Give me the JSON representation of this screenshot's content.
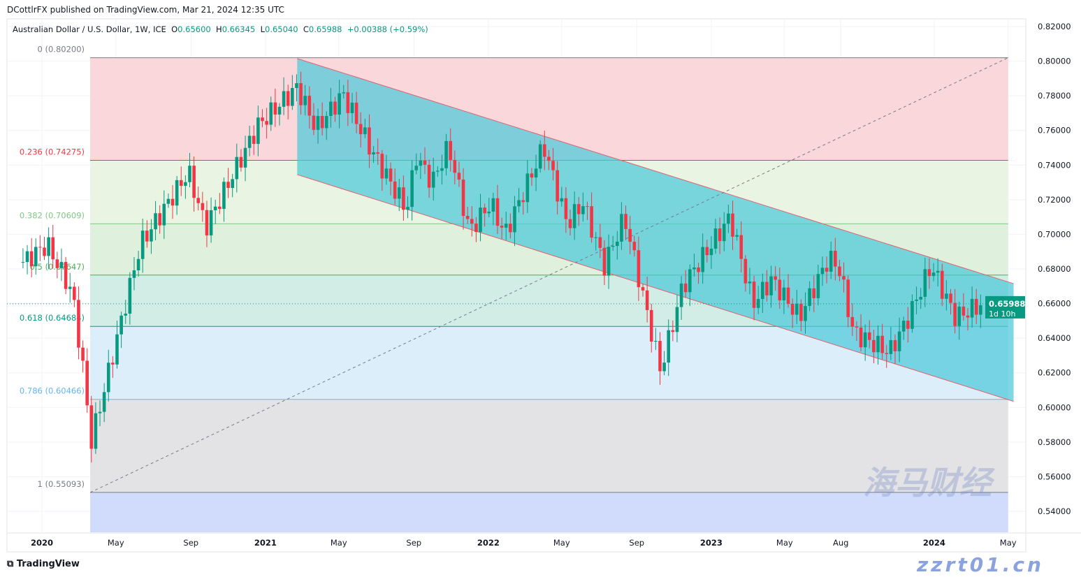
{
  "header": {
    "published": "DCottlrFX published on TradingView.com, Mar 21, 2024 12:35 UTC"
  },
  "legend": {
    "symbol": "Australian Dollar / U.S. Dollar, 1W, ICE",
    "o_label": "O",
    "o": "0.65600",
    "h_label": "H",
    "h": "0.66345",
    "l_label": "L",
    "l": "0.65040",
    "c_label": "C",
    "c": "0.65988",
    "change": "+0.00388 (+0.59%)"
  },
  "footer": {
    "brand": "TradingView"
  },
  "watermark": {
    "line1": "海马财经",
    "line2": "zzrt01.cn"
  },
  "colors": {
    "up": "#089981",
    "down": "#f23645",
    "channel": "#4cc9d9",
    "channel_border": "#e0626e",
    "price_label": "#089981"
  },
  "chart_data": {
    "type": "candlestick",
    "ylim": [
      0.53,
      0.825
    ],
    "y_ticks": [
      "0.82000",
      "0.80000",
      "0.78000",
      "0.76000",
      "0.74000",
      "0.72000",
      "0.70000",
      "0.68000",
      "0.66000",
      "0.64000",
      "0.62000",
      "0.60000",
      "0.58000",
      "0.56000",
      "0.54000"
    ],
    "x_ticks": [
      {
        "label": "2020",
        "date": "2020-01-01",
        "bold": true
      },
      {
        "label": "May",
        "date": "2020-05-01"
      },
      {
        "label": "Sep",
        "date": "2020-09-01"
      },
      {
        "label": "2021",
        "date": "2021-01-01",
        "bold": true
      },
      {
        "label": "May",
        "date": "2021-05-01"
      },
      {
        "label": "Sep",
        "date": "2021-09-01"
      },
      {
        "label": "2022",
        "date": "2022-01-01",
        "bold": true
      },
      {
        "label": "May",
        "date": "2022-05-01"
      },
      {
        "label": "Sep",
        "date": "2022-09-01"
      },
      {
        "label": "2023",
        "date": "2023-01-01",
        "bold": true
      },
      {
        "label": "May",
        "date": "2023-05-01"
      },
      {
        "label": "Aug",
        "date": "2023-08-01"
      },
      {
        "label": "2024",
        "date": "2024-01-01",
        "bold": true
      },
      {
        "label": "May",
        "date": "2024-05-01"
      }
    ],
    "close_swings": [
      [
        "2019-12-01",
        0.684
      ],
      [
        "2020-01-10",
        0.694
      ],
      [
        "2020-02-20",
        0.666
      ],
      [
        "2020-03-13",
        0.61
      ],
      [
        "2020-03-20",
        0.578
      ],
      [
        "2020-06-10",
        0.694
      ],
      [
        "2020-08-28",
        0.736
      ],
      [
        "2020-09-25",
        0.704
      ],
      [
        "2020-12-20",
        0.763
      ],
      [
        "2021-02-22",
        0.785
      ],
      [
        "2021-03-25",
        0.761
      ],
      [
        "2021-05-08",
        0.781
      ],
      [
        "2021-06-20",
        0.751
      ],
      [
        "2021-08-20",
        0.714
      ],
      [
        "2021-09-05",
        0.745
      ],
      [
        "2021-10-01",
        0.73
      ],
      [
        "2021-10-28",
        0.751
      ],
      [
        "2021-12-01",
        0.702
      ],
      [
        "2022-01-05",
        0.718
      ],
      [
        "2022-01-28",
        0.7
      ],
      [
        "2022-04-02",
        0.751
      ],
      [
        "2022-05-10",
        0.706
      ],
      [
        "2022-06-05",
        0.718
      ],
      [
        "2022-07-10",
        0.682
      ],
      [
        "2022-08-12",
        0.71
      ],
      [
        "2022-10-10",
        0.621
      ],
      [
        "2022-11-15",
        0.67
      ],
      [
        "2023-02-01",
        0.71
      ],
      [
        "2023-03-10",
        0.66
      ],
      [
        "2023-04-10",
        0.674
      ],
      [
        "2023-05-25",
        0.652
      ],
      [
        "2023-07-12",
        0.686
      ],
      [
        "2023-07-28",
        0.682
      ],
      [
        "2023-08-22",
        0.643
      ],
      [
        "2023-10-20",
        0.632
      ],
      [
        "2023-11-20",
        0.652
      ],
      [
        "2023-12-27",
        0.682
      ],
      [
        "2024-02-05",
        0.652
      ],
      [
        "2024-03-21",
        0.65988
      ]
    ],
    "last_price": {
      "value": "0.65988",
      "countdown": "1d 10h"
    },
    "fibonacci": {
      "start": "2020-03-20",
      "end": "2024-05-01",
      "levels": [
        {
          "ratio": "0",
          "value": "0.80200",
          "price": 0.802,
          "color": "#787b86",
          "fill": "#f9d7da"
        },
        {
          "ratio": "0.236",
          "value": "0.74275",
          "price": 0.74275,
          "color": "#f23645",
          "fill": "#e9f4e3"
        },
        {
          "ratio": "0.382",
          "value": "0.70609",
          "price": 0.70609,
          "color": "#81c784",
          "fill": "#dff0dc"
        },
        {
          "ratio": "0.5",
          "value": "0.67647",
          "price": 0.67647,
          "color": "#4caf50",
          "fill": "#d2ece6"
        },
        {
          "ratio": "0.618",
          "value": "0.64684",
          "price": 0.64684,
          "color": "#089981",
          "fill": "#ddeefb"
        },
        {
          "ratio": "0.786",
          "value": "0.60466",
          "price": 0.60466,
          "color": "#64b5f6",
          "fill": "#e3e3e5"
        },
        {
          "ratio": "1",
          "value": "0.55093",
          "price": 0.55093,
          "color": "#787b86",
          "fill": "#d1dcfc"
        }
      ]
    },
    "channel": {
      "upper": [
        [
          "2021-02-22",
          0.8015
        ],
        [
          "2024-05-10",
          0.6715
        ]
      ],
      "lower": [
        [
          "2021-02-22",
          0.7345
        ],
        [
          "2024-05-10",
          0.6035
        ]
      ]
    },
    "trend_line": {
      "style": "dashed",
      "from": [
        "2020-03-20",
        0.5509
      ],
      "to": [
        "2024-05-01",
        0.802
      ]
    }
  }
}
